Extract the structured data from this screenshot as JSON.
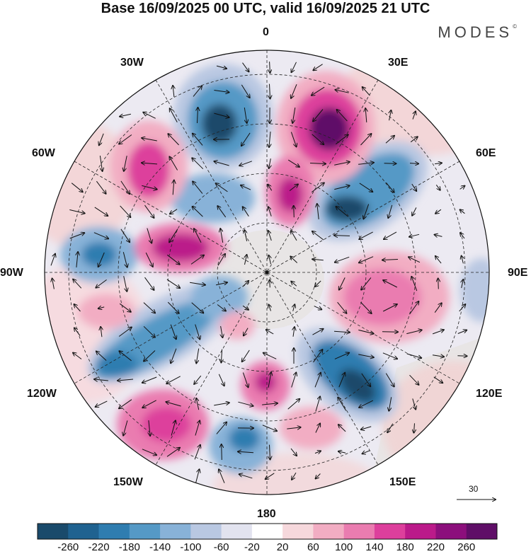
{
  "title": "Base 16/09/2025 00 UTC, valid 16/09/2025 21 UTC",
  "brand": "MODES",
  "brand_mark": "©",
  "longitude_labels": {
    "top": "0",
    "bottom": "180",
    "w30": "30W",
    "e30": "30E",
    "w60": "60W",
    "e60": "60E",
    "w90": "90W",
    "e90": "90E",
    "w120": "120W",
    "e120": "120E",
    "w150": "150W",
    "e150": "150E"
  },
  "vector_reference": "30",
  "colorbar": {
    "labels": [
      "-260",
      "-220",
      "-180",
      "-140",
      "-100",
      "-60",
      "-20",
      "20",
      "60",
      "100",
      "140",
      "180",
      "220",
      "260"
    ],
    "colors": [
      "#1a4a6b",
      "#1f6290",
      "#2f7db0",
      "#5599c6",
      "#88b2d8",
      "#b9c8e2",
      "#e2e3ef",
      "#ffffff",
      "#f6d8dc",
      "#f2adc3",
      "#ea7cb0",
      "#dd3f9c",
      "#bb1a8a",
      "#8c0f7c",
      "#5f0e67"
    ]
  },
  "map_colors": {
    "land": "#e9e9e9",
    "positive_light": "#f6d8dc",
    "positive_mid": "#f2adc3",
    "positive_strong": "#ea7cb0",
    "positive_vstrong": "#dd3f9c",
    "positive_max": "#8c0f7c",
    "negative_light": "#b9c8e2",
    "negative_mid": "#88b2d8",
    "negative_strong": "#5599c6",
    "negative_vstrong": "#2f7db0",
    "negative_max": "#1a4a6b"
  }
}
